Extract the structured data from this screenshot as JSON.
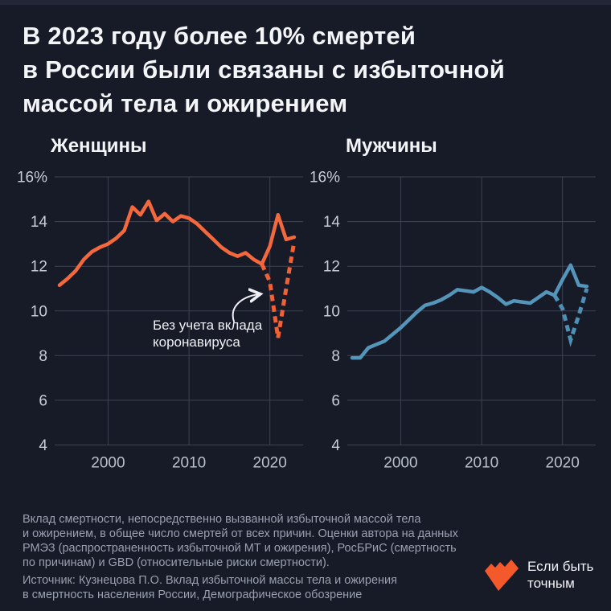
{
  "title": "В 2023 году более 10% смертей\nв России были связаны с избыточной\nмассой тела и ожирением",
  "colors": {
    "background": "#171a27",
    "women_line": "#f4683e",
    "men_line": "#5595ba",
    "logo_orange": "#f4592b",
    "gridline": "#3d4353"
  },
  "chart_data": [
    {
      "type": "line",
      "title": "Женщины",
      "x": [
        1994,
        1995,
        1996,
        1997,
        1998,
        1999,
        2000,
        2001,
        2002,
        2003,
        2004,
        2005,
        2006,
        2007,
        2008,
        2009,
        2010,
        2011,
        2012,
        2013,
        2014,
        2015,
        2016,
        2017,
        2018,
        2019,
        2020,
        2021,
        2022,
        2023
      ],
      "ylim": [
        4,
        16
      ],
      "yticks": {
        "values": [
          16,
          14,
          12,
          10,
          8,
          6,
          4
        ],
        "labels": [
          "16%",
          "14",
          "12",
          "10",
          "8",
          "6",
          "4"
        ]
      },
      "xticks": {
        "values": [
          2000,
          2010,
          2020
        ],
        "labels": [
          "2000",
          "2010",
          "2020"
        ]
      },
      "series": [
        {
          "id": "total",
          "style": "solid",
          "color": "#f4683e",
          "values": [
            11.15,
            11.45,
            11.8,
            12.3,
            12.65,
            12.85,
            13.0,
            13.25,
            13.6,
            14.65,
            14.3,
            14.9,
            14.05,
            14.35,
            14.0,
            14.25,
            14.15,
            13.9,
            13.55,
            13.2,
            12.85,
            12.6,
            12.45,
            12.6,
            12.3,
            12.1,
            12.9,
            14.3,
            13.2,
            13.3
          ]
        },
        {
          "id": "without-covid",
          "style": "dashed",
          "color": "#ef6136",
          "x": [
            2019,
            2020,
            2021,
            2022,
            2023
          ],
          "values": [
            12.1,
            11.3,
            8.8,
            11.0,
            13.1
          ]
        }
      ],
      "annotation": "Без учета вклада\nкоронавируса"
    },
    {
      "type": "line",
      "title": "Мужчины",
      "x": [
        1994,
        1995,
        1996,
        1997,
        1998,
        1999,
        2000,
        2001,
        2002,
        2003,
        2004,
        2005,
        2006,
        2007,
        2008,
        2009,
        2010,
        2011,
        2012,
        2013,
        2014,
        2015,
        2016,
        2017,
        2018,
        2019,
        2020,
        2021,
        2022,
        2023
      ],
      "ylim": [
        4,
        16
      ],
      "yticks": {
        "values": [
          16,
          14,
          12,
          10,
          8,
          6,
          4
        ],
        "labels": [
          "16%",
          "14",
          "12",
          "10",
          "8",
          "6",
          "4"
        ]
      },
      "xticks": {
        "values": [
          2000,
          2010,
          2020
        ],
        "labels": [
          "2000",
          "2010",
          "2020"
        ]
      },
      "series": [
        {
          "id": "total",
          "style": "solid",
          "color": "#5595ba",
          "values": [
            7.9,
            7.9,
            8.35,
            8.5,
            8.65,
            8.95,
            9.25,
            9.6,
            9.95,
            10.25,
            10.35,
            10.5,
            10.7,
            10.95,
            10.9,
            10.85,
            11.05,
            10.85,
            10.6,
            10.3,
            10.45,
            10.4,
            10.35,
            10.6,
            10.85,
            10.7,
            11.4,
            12.05,
            11.15,
            11.1
          ]
        },
        {
          "id": "without-covid",
          "style": "dashed",
          "color": "#4f8fb4",
          "x": [
            2019,
            2020,
            2021,
            2022,
            2023
          ],
          "values": [
            10.7,
            10.1,
            8.7,
            9.8,
            11.0
          ]
        }
      ]
    }
  ],
  "footnote": "Вклад смертности, непосредственно вызванной избыточной массой тела\nи ожирением, в общее число смертей от всех причин. Оценки автора на данных\nРМЭЗ (распространенность избыточной МТ и ожирения), РосБРиС (смертность\nпо причинам) и GBD (относительные риски смертности).",
  "source": "Источник: Кузнецова П.О. Вклад избыточной массы тела и ожирения\nв смертность населения России, Демографическое обозрение",
  "logo": {
    "text": "Если быть\nточным"
  }
}
